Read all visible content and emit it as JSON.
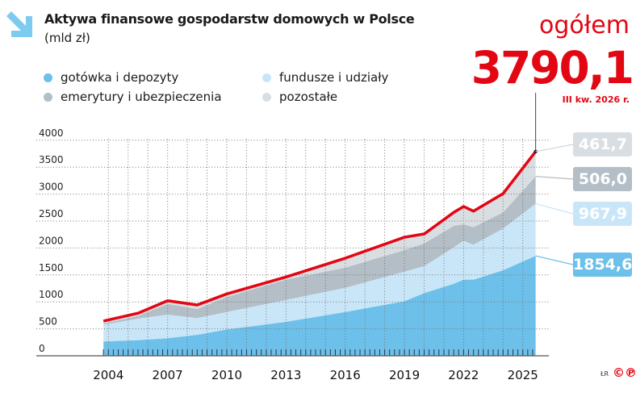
{
  "header": {
    "title": "Aktywa finansowe gospodarstw domowych w Polsce",
    "subtitle": "(mld zł)",
    "icon": "arrow-down-right-icon"
  },
  "legend": [
    {
      "label": "gotówka i depozyty",
      "color": "#6cc0ea"
    },
    {
      "label": "fundusze i udziały",
      "color": "#c9e6f8"
    },
    {
      "label": "emerytury i ubezpieczenia",
      "color": "#b3bec6"
    },
    {
      "label": "pozostałe",
      "color": "#d9dee2"
    }
  ],
  "summary": {
    "label": "ogółem",
    "value": "3790,1",
    "period": "III kw. 2026 r."
  },
  "end_labels": [
    "461,7",
    "506,0",
    "967,9",
    "1854,6"
  ],
  "footer": {
    "credit": "ŁR",
    "copyright": "©℗"
  },
  "chart_data": {
    "type": "area",
    "stacked": true,
    "ylim": [
      0,
      4000
    ],
    "yticks": [
      "0",
      "500",
      "1000",
      "1500",
      "2000",
      "2500",
      "3000",
      "3500",
      "4000"
    ],
    "xticks": [
      "2004",
      "2007",
      "2010",
      "2013",
      "2016",
      "2019",
      "2022",
      "2025"
    ],
    "grid": true,
    "x": [
      2003.75,
      2005.5,
      2007,
      2008.5,
      2010,
      2013,
      2016,
      2019,
      2020,
      2021.5,
      2022,
      2022.5,
      2024,
      2025.65
    ],
    "series": [
      {
        "name": "gotówka i depozyty",
        "color": "#6cc0ea",
        "values": [
          265,
          290,
          325,
          389,
          489,
          630,
          813,
          1013,
          1163,
          1337,
          1412,
          1412,
          1587,
          1854.6
        ]
      },
      {
        "name": "fundusze i udziały",
        "color": "#c9e6f8",
        "values": [
          310,
          400,
          438,
          310,
          324,
          407,
          449,
          548,
          499,
          674,
          724,
          649,
          774,
          967.9
        ]
      },
      {
        "name": "emerytury i ubezpieczenia",
        "color": "#b3bec6",
        "values": [
          20,
          50,
          200,
          169,
          280,
          375,
          374,
          400,
          423,
          399,
          300,
          324,
          299,
          506.0
        ]
      },
      {
        "name": "pozostałe",
        "color": "#d9dee2",
        "values": [
          50,
          50,
          59,
          75,
          55,
          50,
          175,
          239,
          175,
          250,
          334,
          299,
          349,
          461.7
        ]
      }
    ],
    "total": {
      "name": "ogółem",
      "color": "#e30613"
    }
  }
}
